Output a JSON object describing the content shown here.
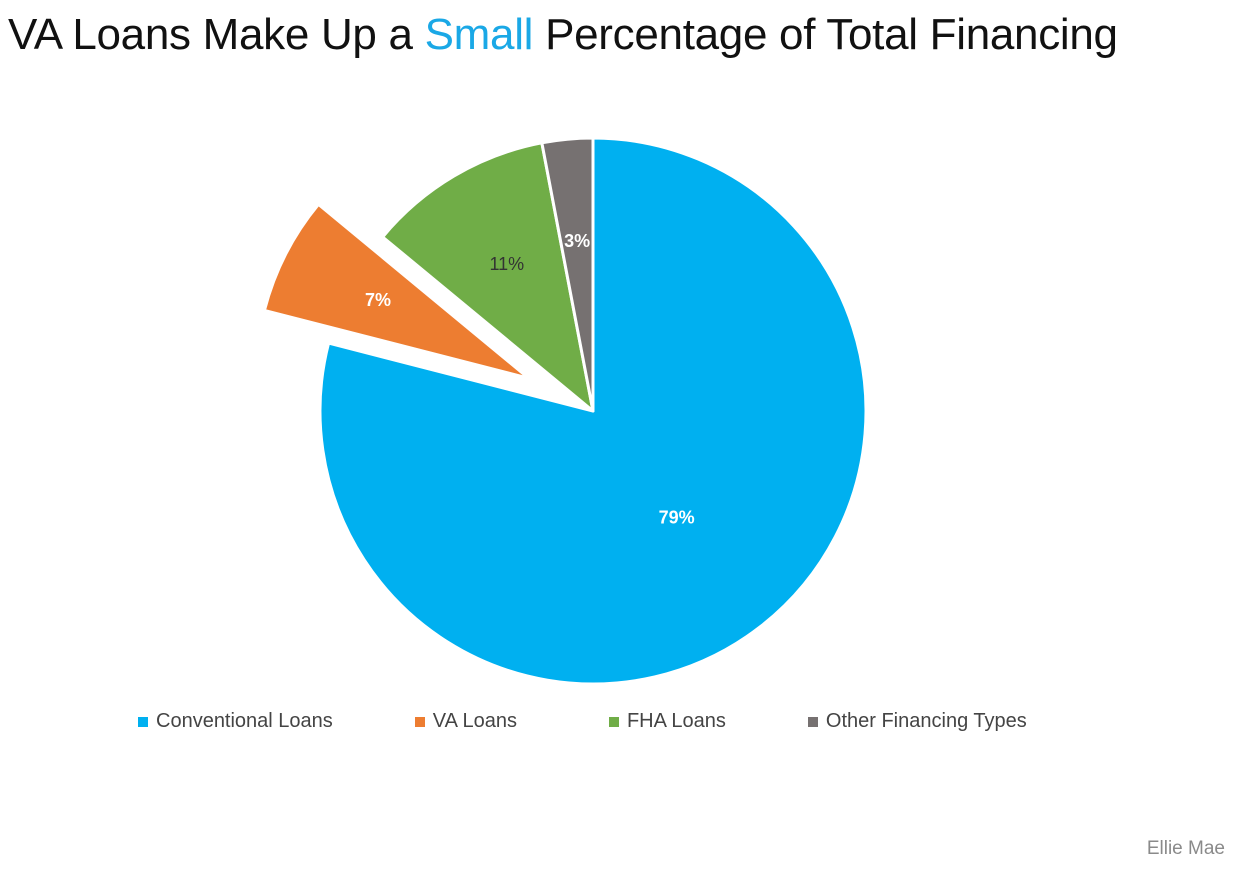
{
  "title": {
    "before": "VA Loans Make Up a ",
    "highlight": "Small",
    "after": " Percentage of Total Financing",
    "highlight_color": "#1aa8e6"
  },
  "source": "Ellie Mae",
  "chart_data": {
    "type": "pie",
    "start_angle_deg": 0,
    "direction": "clockwise",
    "exploded": "VA Loans",
    "legend_position": "bottom",
    "slices": [
      {
        "name": "Conventional Loans",
        "value": 79,
        "label": "79%",
        "color": "#00b0f0",
        "label_color": "#ffffff"
      },
      {
        "name": "VA Loans",
        "value": 7,
        "label": "7%",
        "color": "#ed7d31",
        "label_color": "#ffffff"
      },
      {
        "name": "FHA Loans",
        "value": 11,
        "label": "11%",
        "color": "#70ad47",
        "label_color": "#333333"
      },
      {
        "name": "Other Financing Types",
        "value": 3,
        "label": "3%",
        "color": "#767171",
        "label_color": "#ffffff"
      }
    ]
  }
}
